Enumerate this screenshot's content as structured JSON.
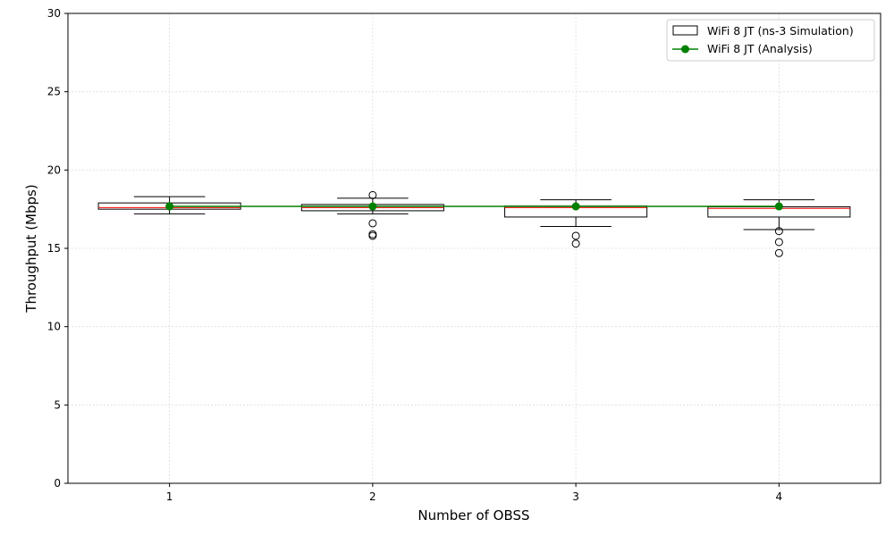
{
  "chart_data": {
    "type": "box",
    "title": "",
    "xlabel": "Number of OBSS",
    "ylabel": "Throughput (Mbps)",
    "categories": [
      "1",
      "2",
      "3",
      "4"
    ],
    "xlim": [
      0.5,
      4.5
    ],
    "ylim": [
      0,
      30
    ],
    "yticks": [
      0,
      5,
      10,
      15,
      20,
      25,
      30
    ],
    "grid": true,
    "legend_position": "top-right",
    "box_series": {
      "name": "WiFi 8 JT (ns-3 Simulation)",
      "median_color": "#ff0000",
      "boxes": [
        {
          "x": 1,
          "whisker_low": 17.2,
          "q1": 17.5,
          "median": 17.6,
          "q3": 17.9,
          "whisker_high": 18.3,
          "outliers": []
        },
        {
          "x": 2,
          "whisker_low": 17.2,
          "q1": 17.4,
          "median": 17.6,
          "q3": 17.8,
          "whisker_high": 18.2,
          "outliers": [
            18.4,
            16.6,
            15.9,
            15.8
          ]
        },
        {
          "x": 3,
          "whisker_low": 16.4,
          "q1": 17.0,
          "median": 17.6,
          "q3": 17.7,
          "whisker_high": 18.1,
          "outliers": [
            15.8,
            15.3
          ]
        },
        {
          "x": 4,
          "whisker_low": 16.2,
          "q1": 17.0,
          "median": 17.55,
          "q3": 17.65,
          "whisker_high": 18.1,
          "outliers": [
            16.1,
            15.4,
            14.7
          ]
        }
      ]
    },
    "line_series": {
      "name": "WiFi 8 JT (Analysis)",
      "color": "#008000",
      "x": [
        1,
        2,
        3,
        4
      ],
      "values": [
        17.68,
        17.68,
        17.68,
        17.68
      ]
    }
  }
}
